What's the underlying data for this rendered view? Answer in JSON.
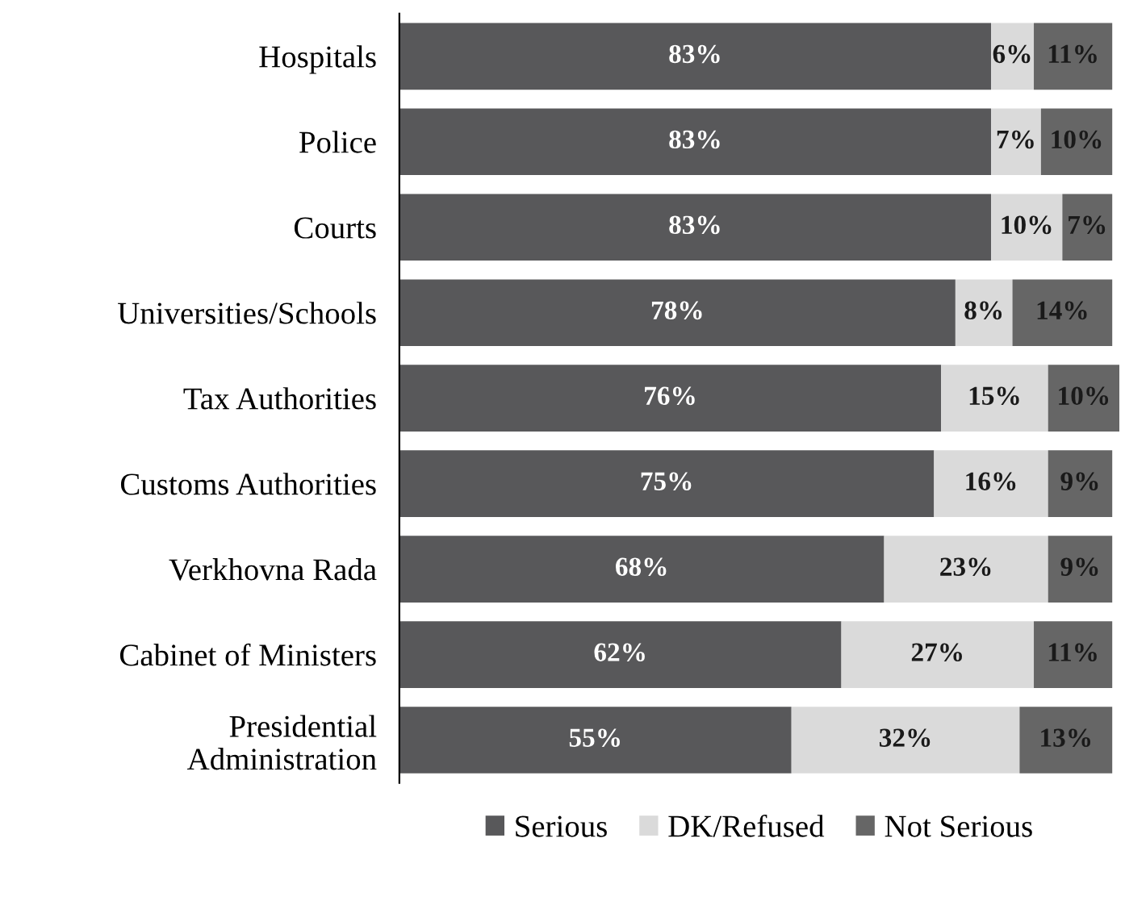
{
  "chart_data": {
    "type": "bar",
    "orientation": "horizontal",
    "stacked": true,
    "legend": "bottom",
    "grid": false,
    "tick_labels": "y",
    "categories": [
      "Hospitals",
      "Police",
      "Courts",
      "Universities/Schools",
      "Tax Authorities",
      "Customs Authorities",
      "Verkhovna Rada",
      "Cabinet of Ministers",
      "Presidential\nAdministration"
    ],
    "series": [
      {
        "name": "Serious",
        "color": "#58585a",
        "values": [
          83,
          83,
          83,
          78,
          76,
          75,
          68,
          62,
          55
        ],
        "value_labels": [
          "83%",
          "83%",
          "83%",
          "78%",
          "76%",
          "75%",
          "68%",
          "62%",
          "55%"
        ]
      },
      {
        "name": "DK/Refused",
        "color": "#dadada",
        "values": [
          6,
          7,
          10,
          8,
          15,
          16,
          23,
          27,
          32
        ],
        "value_labels": [
          "6%",
          "7%",
          "10%",
          "8%",
          "15%",
          "16%",
          "23%",
          "27%",
          "32%"
        ]
      },
      {
        "name": "Not Serious",
        "color": "#666666",
        "values": [
          11,
          10,
          7,
          14,
          10,
          9,
          9,
          11,
          13
        ],
        "value_labels": [
          "11%",
          "10%",
          "7%",
          "14%",
          "10%",
          "9%",
          "9%",
          "11%",
          "13%"
        ]
      }
    ]
  }
}
